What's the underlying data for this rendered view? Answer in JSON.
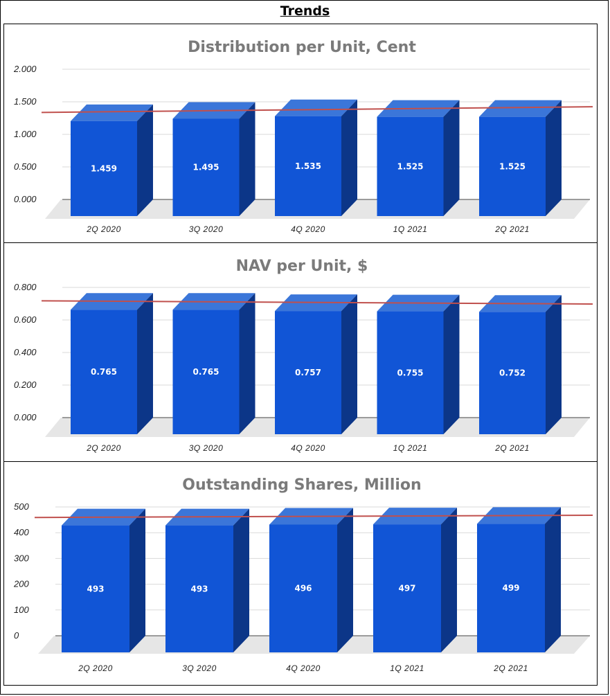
{
  "page_title": "Trends",
  "colors": {
    "bar_front": "#1155d6",
    "bar_top": "#3b76d9",
    "bar_side": "#0c3688",
    "floor": "#e6e6e6",
    "grid": "#d9d9d9",
    "trendline": "#c0504d"
  },
  "chart_data": [
    {
      "type": "bar",
      "title": "Distribution per Unit, Cent",
      "categories": [
        "2Q 2020",
        "3Q 2020",
        "4Q 2020",
        "1Q 2021",
        "2Q 2021"
      ],
      "values": [
        1.459,
        1.495,
        1.535,
        1.525,
        1.525
      ],
      "data_labels": [
        "1.459",
        "1.495",
        "1.535",
        "1.525",
        "1.525"
      ],
      "ylim": [
        0,
        2
      ],
      "yticks": [
        "0.000",
        "0.500",
        "1.000",
        "1.500",
        "2.000"
      ],
      "trendline": true,
      "grid": true,
      "three_d": true
    },
    {
      "type": "bar",
      "title": "NAV per Unit, $",
      "categories": [
        "2Q 2020",
        "3Q 2020",
        "4Q 2020",
        "1Q 2021",
        "2Q 2021"
      ],
      "values": [
        0.765,
        0.765,
        0.757,
        0.755,
        0.752
      ],
      "data_labels": [
        "0.765",
        "0.765",
        "0.757",
        "0.755",
        "0.752"
      ],
      "ylim": [
        0,
        0.8
      ],
      "yticks": [
        "0.000",
        "0.200",
        "0.400",
        "0.600",
        "0.800"
      ],
      "trendline": true,
      "grid": true,
      "three_d": true
    },
    {
      "type": "bar",
      "title": "Outstanding Shares, Million",
      "categories": [
        "2Q 2020",
        "3Q 2020",
        "4Q 2020",
        "1Q 2021",
        "2Q 2021"
      ],
      "values": [
        493,
        493,
        496,
        497,
        499
      ],
      "data_labels": [
        "493",
        "493",
        "496",
        "497",
        "499"
      ],
      "ylim": [
        0,
        500
      ],
      "yticks": [
        "0",
        "100",
        "200",
        "300",
        "400",
        "500"
      ],
      "trendline": true,
      "grid": true,
      "three_d": true
    }
  ]
}
